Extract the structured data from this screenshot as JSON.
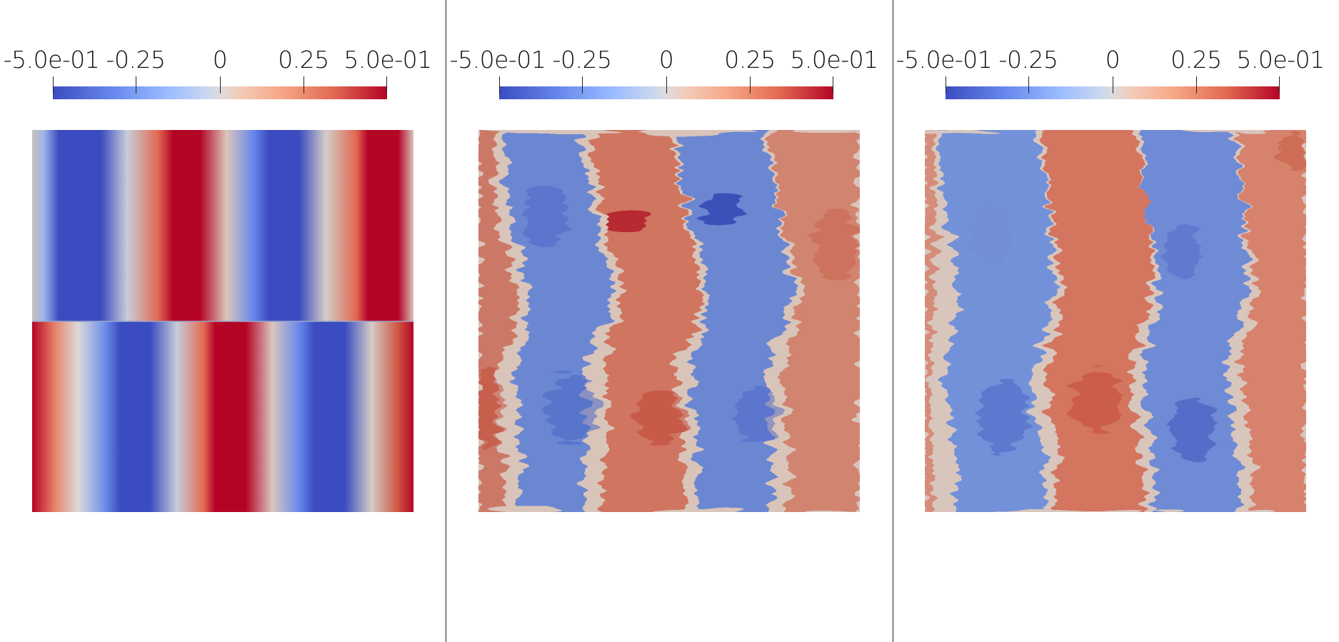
{
  "colorbar": {
    "tick_labels": [
      "-5.0e-01",
      "-0.25",
      "0",
      "0.25",
      "5.0e-01"
    ],
    "range": [
      -0.5,
      0.5
    ],
    "colormap": "cool-to-warm",
    "colors": {
      "low": "#3b4cc0",
      "mid": "#dddcdc",
      "high": "#b40426"
    }
  },
  "views": [
    {
      "label_ids": [
        "a",
        "b",
        "c",
        "d",
        "e"
      ]
    },
    {
      "label_ids": [
        "a",
        "b",
        "c",
        "d",
        "e"
      ]
    },
    {
      "label_ids": [
        "a",
        "b",
        "c",
        "d",
        "e"
      ]
    }
  ]
}
